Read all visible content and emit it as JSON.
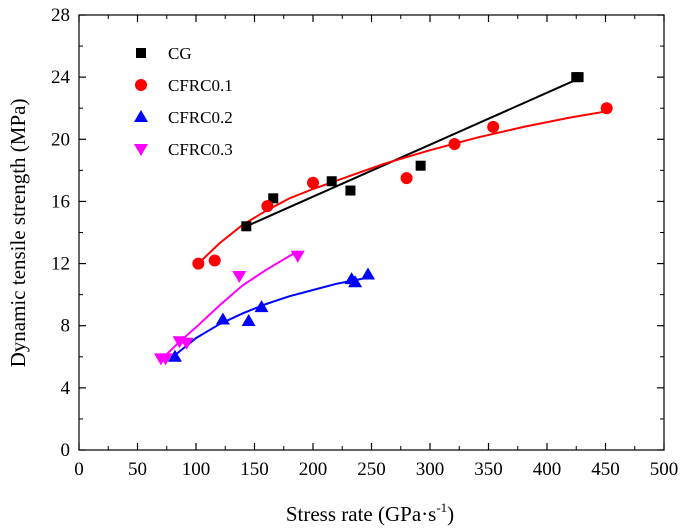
{
  "chart_data": {
    "type": "scatter",
    "xlabel": "Stress rate (GPa·s",
    "xlabel_sup": "-1",
    "xlabel_close": ")",
    "ylabel": "Dynamic tensile strength (MPa)",
    "xlim": [
      0,
      500
    ],
    "ylim": [
      0,
      28
    ],
    "xticks": [
      0,
      50,
      100,
      150,
      200,
      250,
      300,
      350,
      400,
      450,
      500
    ],
    "yticks": [
      0,
      4,
      8,
      12,
      16,
      20,
      24,
      28
    ],
    "legend_position": "top-left",
    "series": [
      {
        "name": "CG",
        "color": "#000000",
        "marker": "square",
        "points": [
          [
            143,
            14.4
          ],
          [
            166,
            16.2
          ],
          [
            216,
            17.3
          ],
          [
            232,
            16.7
          ],
          [
            292,
            18.3
          ],
          [
            425,
            24.0
          ],
          [
            427,
            24.0
          ]
        ],
        "fit": {
          "kind": "linear",
          "x0": 143,
          "x1": 427,
          "y0": 14.4,
          "y1": 23.9
        }
      },
      {
        "name": "CFRC0.1",
        "color": "#ff0000",
        "marker": "circle",
        "points": [
          [
            102,
            12.0
          ],
          [
            116,
            12.2
          ],
          [
            161,
            15.7
          ],
          [
            200,
            17.2
          ],
          [
            280,
            17.5
          ],
          [
            321,
            19.7
          ],
          [
            354,
            20.8
          ],
          [
            451,
            22.0
          ]
        ],
        "fit": {
          "kind": "curve",
          "points": [
            [
              102,
              12.0
            ],
            [
              120,
              13.3
            ],
            [
              140,
              14.5
            ],
            [
              160,
              15.4
            ],
            [
              180,
              16.2
            ],
            [
              200,
              16.8
            ],
            [
              230,
              17.6
            ],
            [
              260,
              18.4
            ],
            [
              300,
              19.3
            ],
            [
              340,
              20.1
            ],
            [
              380,
              20.8
            ],
            [
              420,
              21.4
            ],
            [
              451,
              21.8
            ]
          ]
        }
      },
      {
        "name": "CFRC0.2",
        "color": "#0000ff",
        "marker": "triangle-up",
        "points": [
          [
            82,
            6.0
          ],
          [
            123,
            8.4
          ],
          [
            145,
            8.3
          ],
          [
            156,
            9.2
          ],
          [
            233,
            11.0
          ],
          [
            236,
            10.8
          ],
          [
            247,
            11.3
          ]
        ],
        "fit": {
          "kind": "curve",
          "points": [
            [
              82,
              6.1
            ],
            [
              100,
              7.2
            ],
            [
              120,
              8.1
            ],
            [
              140,
              8.8
            ],
            [
              160,
              9.4
            ],
            [
              180,
              9.9
            ],
            [
              200,
              10.3
            ],
            [
              220,
              10.7
            ],
            [
              247,
              11.1
            ]
          ]
        }
      },
      {
        "name": "CFRC0.3",
        "color": "#ff00ff",
        "marker": "triangle-down",
        "points": [
          [
            70,
            5.9
          ],
          [
            74,
            5.9
          ],
          [
            86,
            7.0
          ],
          [
            92,
            6.9
          ],
          [
            137,
            11.2
          ],
          [
            187,
            12.5
          ]
        ],
        "fit": {
          "kind": "curve",
          "points": [
            [
              70,
              5.8
            ],
            [
              85,
              6.9
            ],
            [
              100,
              7.9
            ],
            [
              120,
              9.3
            ],
            [
              140,
              10.6
            ],
            [
              160,
              11.6
            ],
            [
              187,
              12.8
            ]
          ]
        }
      }
    ]
  }
}
